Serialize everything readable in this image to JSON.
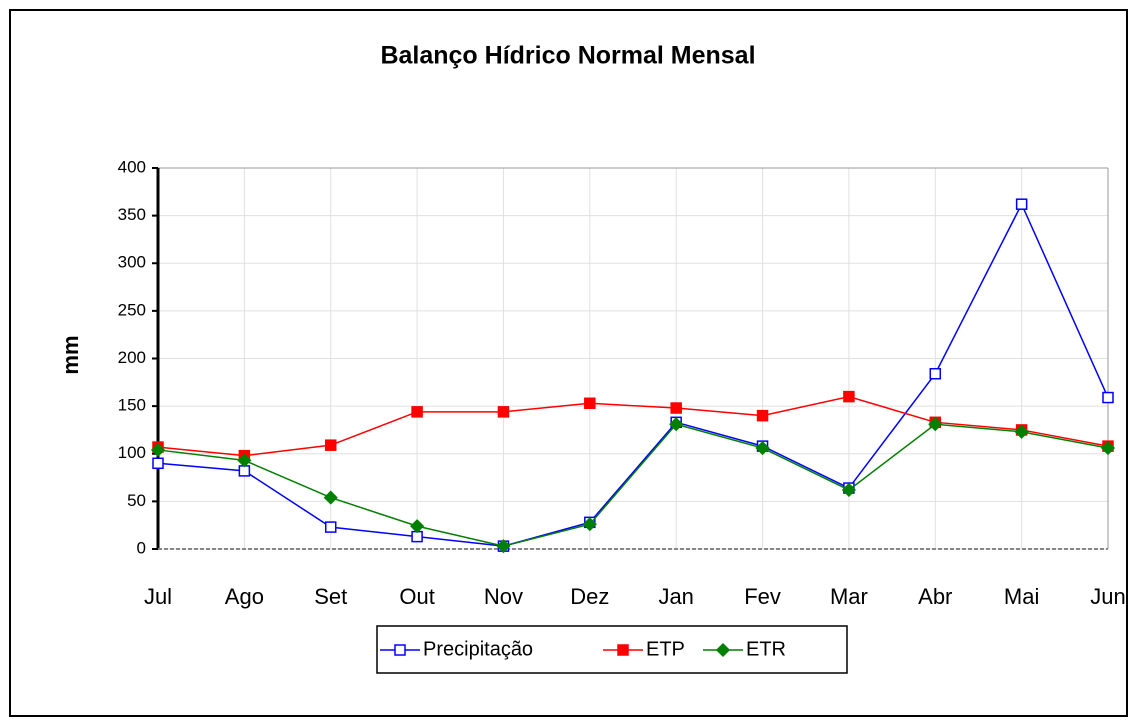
{
  "chart_data": {
    "type": "line",
    "title": "Balanço Hídrico Normal Mensal",
    "y_label": "mm",
    "categories": [
      "Jul",
      "Ago",
      "Set",
      "Out",
      "Nov",
      "Dez",
      "Jan",
      "Fev",
      "Mar",
      "Abr",
      "Mai",
      "Jun"
    ],
    "series": [
      {
        "name": "Precipitação",
        "color": "#0000ff",
        "marker": "square-open",
        "values": [
          90,
          82,
          23,
          13,
          3,
          28,
          133,
          108,
          64,
          184,
          362,
          159
        ]
      },
      {
        "name": "ETP",
        "color": "#ff0000",
        "marker": "square",
        "values": [
          107,
          98,
          109,
          144,
          144,
          153,
          148,
          140,
          160,
          133,
          125,
          108
        ]
      },
      {
        "name": "ETR",
        "color": "#008000",
        "marker": "diamond",
        "values": [
          104,
          93,
          54,
          24,
          3,
          26,
          131,
          106,
          62,
          131,
          123,
          106
        ]
      }
    ],
    "ylim": [
      0,
      400
    ],
    "yticks": [
      0,
      50,
      100,
      150,
      200,
      250,
      300,
      350,
      400
    ],
    "grid": true,
    "legend": "bottom"
  }
}
